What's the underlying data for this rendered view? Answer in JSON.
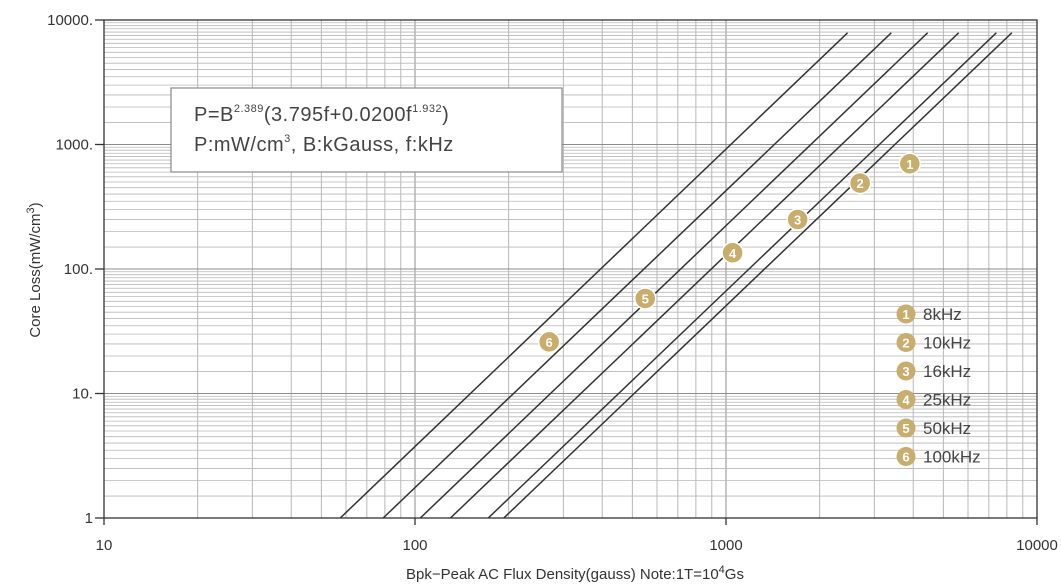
{
  "chart_data": {
    "type": "line",
    "x_scale": "log",
    "y_scale": "log",
    "xlim": [
      10,
      10000
    ],
    "ylim": [
      1,
      10000
    ],
    "x_ticks": [
      "10",
      "100",
      "1000",
      "10000"
    ],
    "y_ticks": [
      "1",
      "10.",
      "100.",
      "1000.",
      "10000."
    ],
    "xlabel": "Bpk−Peak AC Flux Density(gauss) Note:1T=10",
    "xlabel_sup": "4",
    "xlabel_tail": "Gs",
    "ylabel": "Core Loss(mW/cm",
    "ylabel_sup": "3",
    "ylabel_tail": ")",
    "grid": true,
    "formula": {
      "line1_a": "P=B",
      "line1_sup1": "2.389",
      "line1_b": "(3.795f+0.0200f",
      "line1_sup2": "1.932",
      "line1_c": ")",
      "line2_a": "P:mW/cm",
      "line2_sup": "3",
      "line2_b": ",  B:kGauss,  f:kHz"
    },
    "series": [
      {
        "marker": "1",
        "name": "8kHz",
        "x": [
          193,
          8300
        ],
        "y": [
          1,
          7890
        ]
      },
      {
        "marker": "2",
        "name": "10kHz",
        "x": [
          172,
          7400
        ],
        "y": [
          1,
          7890
        ]
      },
      {
        "marker": "3",
        "name": "16kHz",
        "x": [
          130,
          5600
        ],
        "y": [
          1,
          7890
        ]
      },
      {
        "marker": "4",
        "name": "25kHz",
        "x": [
          104,
          4450
        ],
        "y": [
          1,
          7890
        ]
      },
      {
        "marker": "5",
        "name": "50kHz",
        "x": [
          79,
          3400
        ],
        "y": [
          1,
          7890
        ]
      },
      {
        "marker": "6",
        "name": "100kHz",
        "x": [
          57.5,
          2460
        ],
        "y": [
          1,
          7890
        ]
      }
    ],
    "markers": [
      {
        "label": "1",
        "x": 3900,
        "y": 700
      },
      {
        "label": "2",
        "x": 2700,
        "y": 490
      },
      {
        "label": "3",
        "x": 1700,
        "y": 250
      },
      {
        "label": "4",
        "x": 1050,
        "y": 135
      },
      {
        "label": "5",
        "x": 550,
        "y": 58
      },
      {
        "label": "6",
        "x": 270,
        "y": 26
      }
    ],
    "legend_position": "lower-right",
    "colors": {
      "line": "#333333",
      "grid": "#b8b8b8",
      "marker": "#c9ad6c",
      "box_border": "#8a8a8a"
    }
  }
}
